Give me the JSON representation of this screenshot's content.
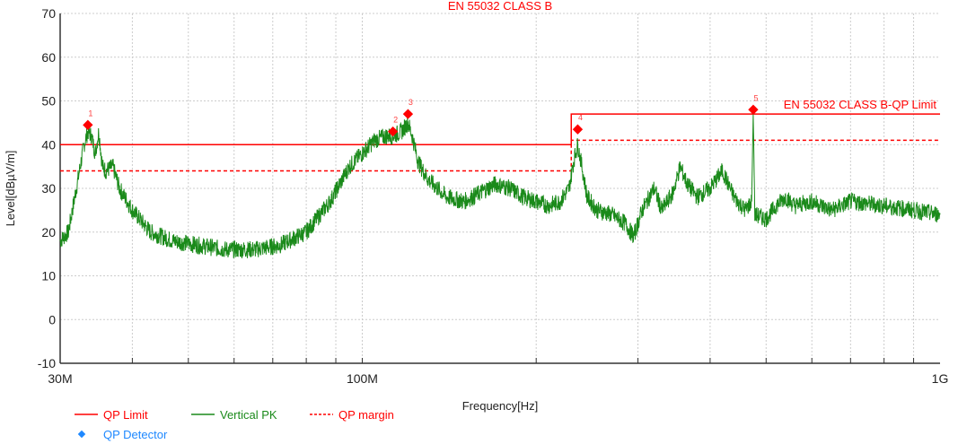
{
  "chart_data": {
    "type": "line",
    "title": "EN 55032 CLASS B",
    "xlabel": "Frequency[Hz]",
    "ylabel": "Level[dBµV/m]",
    "xscale": "log",
    "xlim_mhz": [
      30,
      1000
    ],
    "ylim": [
      -10,
      70
    ],
    "yticks": [
      -10,
      0,
      10,
      20,
      30,
      40,
      50,
      60,
      70
    ],
    "xtick_labels": [
      {
        "mhz": 30,
        "label": "30M"
      },
      {
        "mhz": 100,
        "label": "100M"
      },
      {
        "mhz": 1000,
        "label": "1G"
      }
    ],
    "grid": true,
    "limit_label": "EN 55032 CLASS B-QP Limit",
    "series": [
      {
        "name": "QP Limit",
        "color": "#ff0000",
        "style": "solid",
        "points": [
          [
            30,
            40
          ],
          [
            230,
            40
          ],
          [
            230,
            47
          ],
          [
            1000,
            47
          ]
        ]
      },
      {
        "name": "QP margin",
        "color": "#ff0000",
        "style": "dashed",
        "points": [
          [
            30,
            34
          ],
          [
            230,
            34
          ],
          [
            230,
            41
          ],
          [
            1000,
            41
          ]
        ]
      },
      {
        "name": "Vertical PK",
        "color": "#1a8a1a",
        "style": "solid",
        "points": [
          [
            30,
            18
          ],
          [
            31,
            20
          ],
          [
            32,
            30
          ],
          [
            33,
            40
          ],
          [
            33.5,
            43
          ],
          [
            34,
            42
          ],
          [
            34.5,
            38
          ],
          [
            35,
            43
          ],
          [
            35.5,
            35
          ],
          [
            36,
            34
          ],
          [
            37,
            35
          ],
          [
            38,
            30
          ],
          [
            40,
            25
          ],
          [
            43,
            20
          ],
          [
            47,
            18
          ],
          [
            52,
            17
          ],
          [
            58,
            16
          ],
          [
            65,
            16
          ],
          [
            72,
            17
          ],
          [
            80,
            20
          ],
          [
            88,
            27
          ],
          [
            95,
            35
          ],
          [
            100,
            38
          ],
          [
            105,
            41
          ],
          [
            110,
            42
          ],
          [
            113,
            42
          ],
          [
            117,
            43
          ],
          [
            120,
            45
          ],
          [
            122,
            42
          ],
          [
            125,
            36
          ],
          [
            130,
            32
          ],
          [
            140,
            28
          ],
          [
            150,
            27
          ],
          [
            160,
            29
          ],
          [
            170,
            31
          ],
          [
            180,
            30
          ],
          [
            190,
            28
          ],
          [
            200,
            27
          ],
          [
            210,
            26
          ],
          [
            220,
            27
          ],
          [
            228,
            30
          ],
          [
            232,
            36
          ],
          [
            236,
            40
          ],
          [
            240,
            35
          ],
          [
            245,
            28
          ],
          [
            255,
            25
          ],
          [
            270,
            24
          ],
          [
            285,
            22
          ],
          [
            295,
            19
          ],
          [
            305,
            25
          ],
          [
            320,
            30
          ],
          [
            330,
            25
          ],
          [
            345,
            29
          ],
          [
            355,
            35
          ],
          [
            365,
            31
          ],
          [
            380,
            28
          ],
          [
            400,
            30
          ],
          [
            420,
            34
          ],
          [
            440,
            28
          ],
          [
            460,
            25
          ],
          [
            472,
            27
          ],
          [
            475,
            47
          ],
          [
            478,
            24
          ],
          [
            500,
            23
          ],
          [
            520,
            26
          ],
          [
            540,
            28
          ],
          [
            560,
            26
          ],
          [
            600,
            27
          ],
          [
            650,
            25
          ],
          [
            700,
            27
          ],
          [
            800,
            26
          ],
          [
            900,
            25
          ],
          [
            1000,
            24
          ]
        ]
      }
    ],
    "markers": [
      {
        "label": "1",
        "mhz": 33.5,
        "value": 44.5
      },
      {
        "label": "2",
        "mhz": 113,
        "value": 43
      },
      {
        "label": "3",
        "mhz": 120,
        "value": 47
      },
      {
        "label": "4",
        "mhz": 236,
        "value": 43.5
      },
      {
        "label": "5",
        "mhz": 475,
        "value": 48
      }
    ],
    "legend": [
      {
        "name": "QP Limit",
        "color": "#ff0000",
        "style": "solid"
      },
      {
        "name": "Vertical PK",
        "color": "#1a8a1a",
        "style": "solid"
      },
      {
        "name": "QP margin",
        "color": "#ff0000",
        "style": "dashed"
      },
      {
        "name": "QP Detector",
        "color": "#1e88ff",
        "style": "diamond"
      }
    ],
    "legend_position": "bottom-left"
  }
}
